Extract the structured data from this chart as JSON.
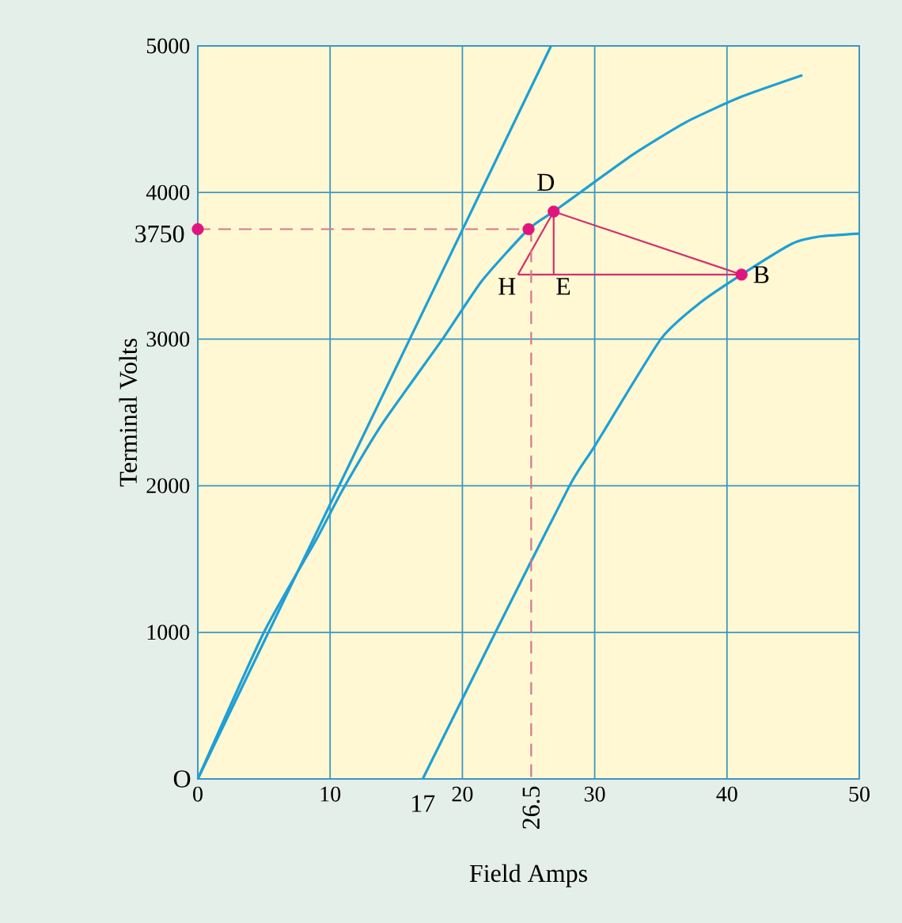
{
  "chart_data": {
    "type": "line",
    "xlabel": "Field Amps",
    "ylabel": "Terminal Volts",
    "xlim": [
      0,
      50
    ],
    "ylim": [
      0,
      5000
    ],
    "xticks": [
      0,
      10,
      20,
      30,
      40,
      50
    ],
    "yticks": [
      1000,
      2000,
      3000,
      4000,
      5000
    ],
    "grid": true,
    "series": [
      {
        "color": "#1e9fd6",
        "x": [
          0,
          26.7
        ],
        "values": [
          0,
          5000
        ]
      },
      {
        "color": "#1e9fd6",
        "x": [
          0,
          5,
          9,
          11,
          14,
          18.5,
          21.5,
          25,
          26.9,
          28.9,
          32.9,
          36.9,
          41,
          45.7
        ],
        "values": [
          0,
          1000,
          1640,
          1980,
          2430,
          3000,
          3400,
          3750,
          3870,
          4000,
          4260,
          4480,
          4650,
          4800
        ]
      },
      {
        "color": "#1e9fd6",
        "x": [
          17,
          22.5,
          28.1,
          30,
          35,
          38,
          41.1,
          44.9,
          47,
          50
        ],
        "values": [
          0,
          1000,
          2000,
          2270,
          3000,
          3250,
          3440,
          3650,
          3700,
          3720
        ]
      },
      {
        "color": "#d4306e",
        "x": [
          24.2,
          26.9
        ],
        "values": [
          3440,
          3870
        ]
      },
      {
        "color": "#d4306e",
        "x": [
          26.9,
          41.1
        ],
        "values": [
          3870,
          3440
        ]
      },
      {
        "color": "#d4306e",
        "x": [
          24.2,
          41.1
        ],
        "values": [
          3440,
          3440
        ]
      },
      {
        "color": "#d4306e",
        "x": [
          26.9,
          26.9
        ],
        "values": [
          3870,
          3440
        ]
      },
      {
        "color": "#d4788c",
        "line_style": "dashed",
        "x": [
          0,
          25
        ],
        "values": [
          3750,
          3750
        ]
      },
      {
        "color": "#d4788c",
        "line_style": "dashed",
        "x": [
          25.2,
          25.2
        ],
        "values": [
          3750,
          0
        ]
      },
      {
        "type": "scatter",
        "marker": "circle",
        "color": "#e0147e",
        "x": [
          0,
          25,
          26.9,
          41.1
        ],
        "values": [
          3750,
          3750,
          3870,
          3440
        ]
      }
    ],
    "annotations": [
      {
        "text": "O",
        "x": 0,
        "y": 0
      },
      {
        "text": "17",
        "x": 17,
        "y": 0
      },
      {
        "text": "26.5",
        "x": 25.2,
        "y": 0
      },
      {
        "text": "3750",
        "x": 0,
        "y": 3750
      },
      {
        "text": "D",
        "x": 26.9,
        "y": 3870
      },
      {
        "text": "H",
        "x": 24.2,
        "y": 3440
      },
      {
        "text": "E",
        "x": 26.9,
        "y": 3440
      },
      {
        "text": "B",
        "x": 41.1,
        "y": 3440
      }
    ]
  }
}
